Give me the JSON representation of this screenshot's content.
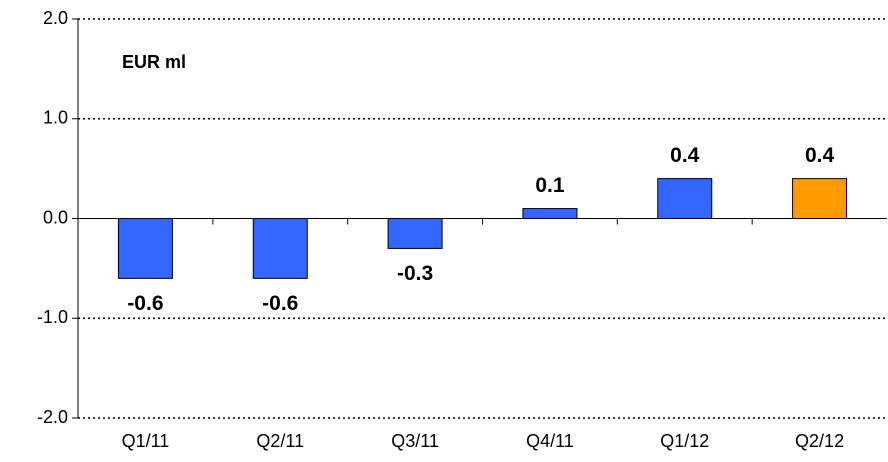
{
  "chart_data": {
    "type": "bar",
    "annotation": "EUR ml",
    "categories": [
      "Q1/11",
      "Q2/11",
      "Q3/11",
      "Q4/11",
      "Q1/12",
      "Q2/12"
    ],
    "values": [
      -0.6,
      -0.6,
      -0.3,
      0.1,
      0.4,
      0.4
    ],
    "colors": [
      "#3366ff",
      "#3366ff",
      "#3366ff",
      "#3366ff",
      "#3366ff",
      "#ff9900"
    ],
    "ylim": [
      -2,
      2
    ],
    "yticks": [
      {
        "value": -2,
        "label": "-2.0"
      },
      {
        "value": -1,
        "label": "-1.0"
      },
      {
        "value": 0,
        "label": "0.0"
      },
      {
        "value": 1,
        "label": "1.0"
      },
      {
        "value": 2,
        "label": "2.0"
      }
    ],
    "grid": true
  }
}
